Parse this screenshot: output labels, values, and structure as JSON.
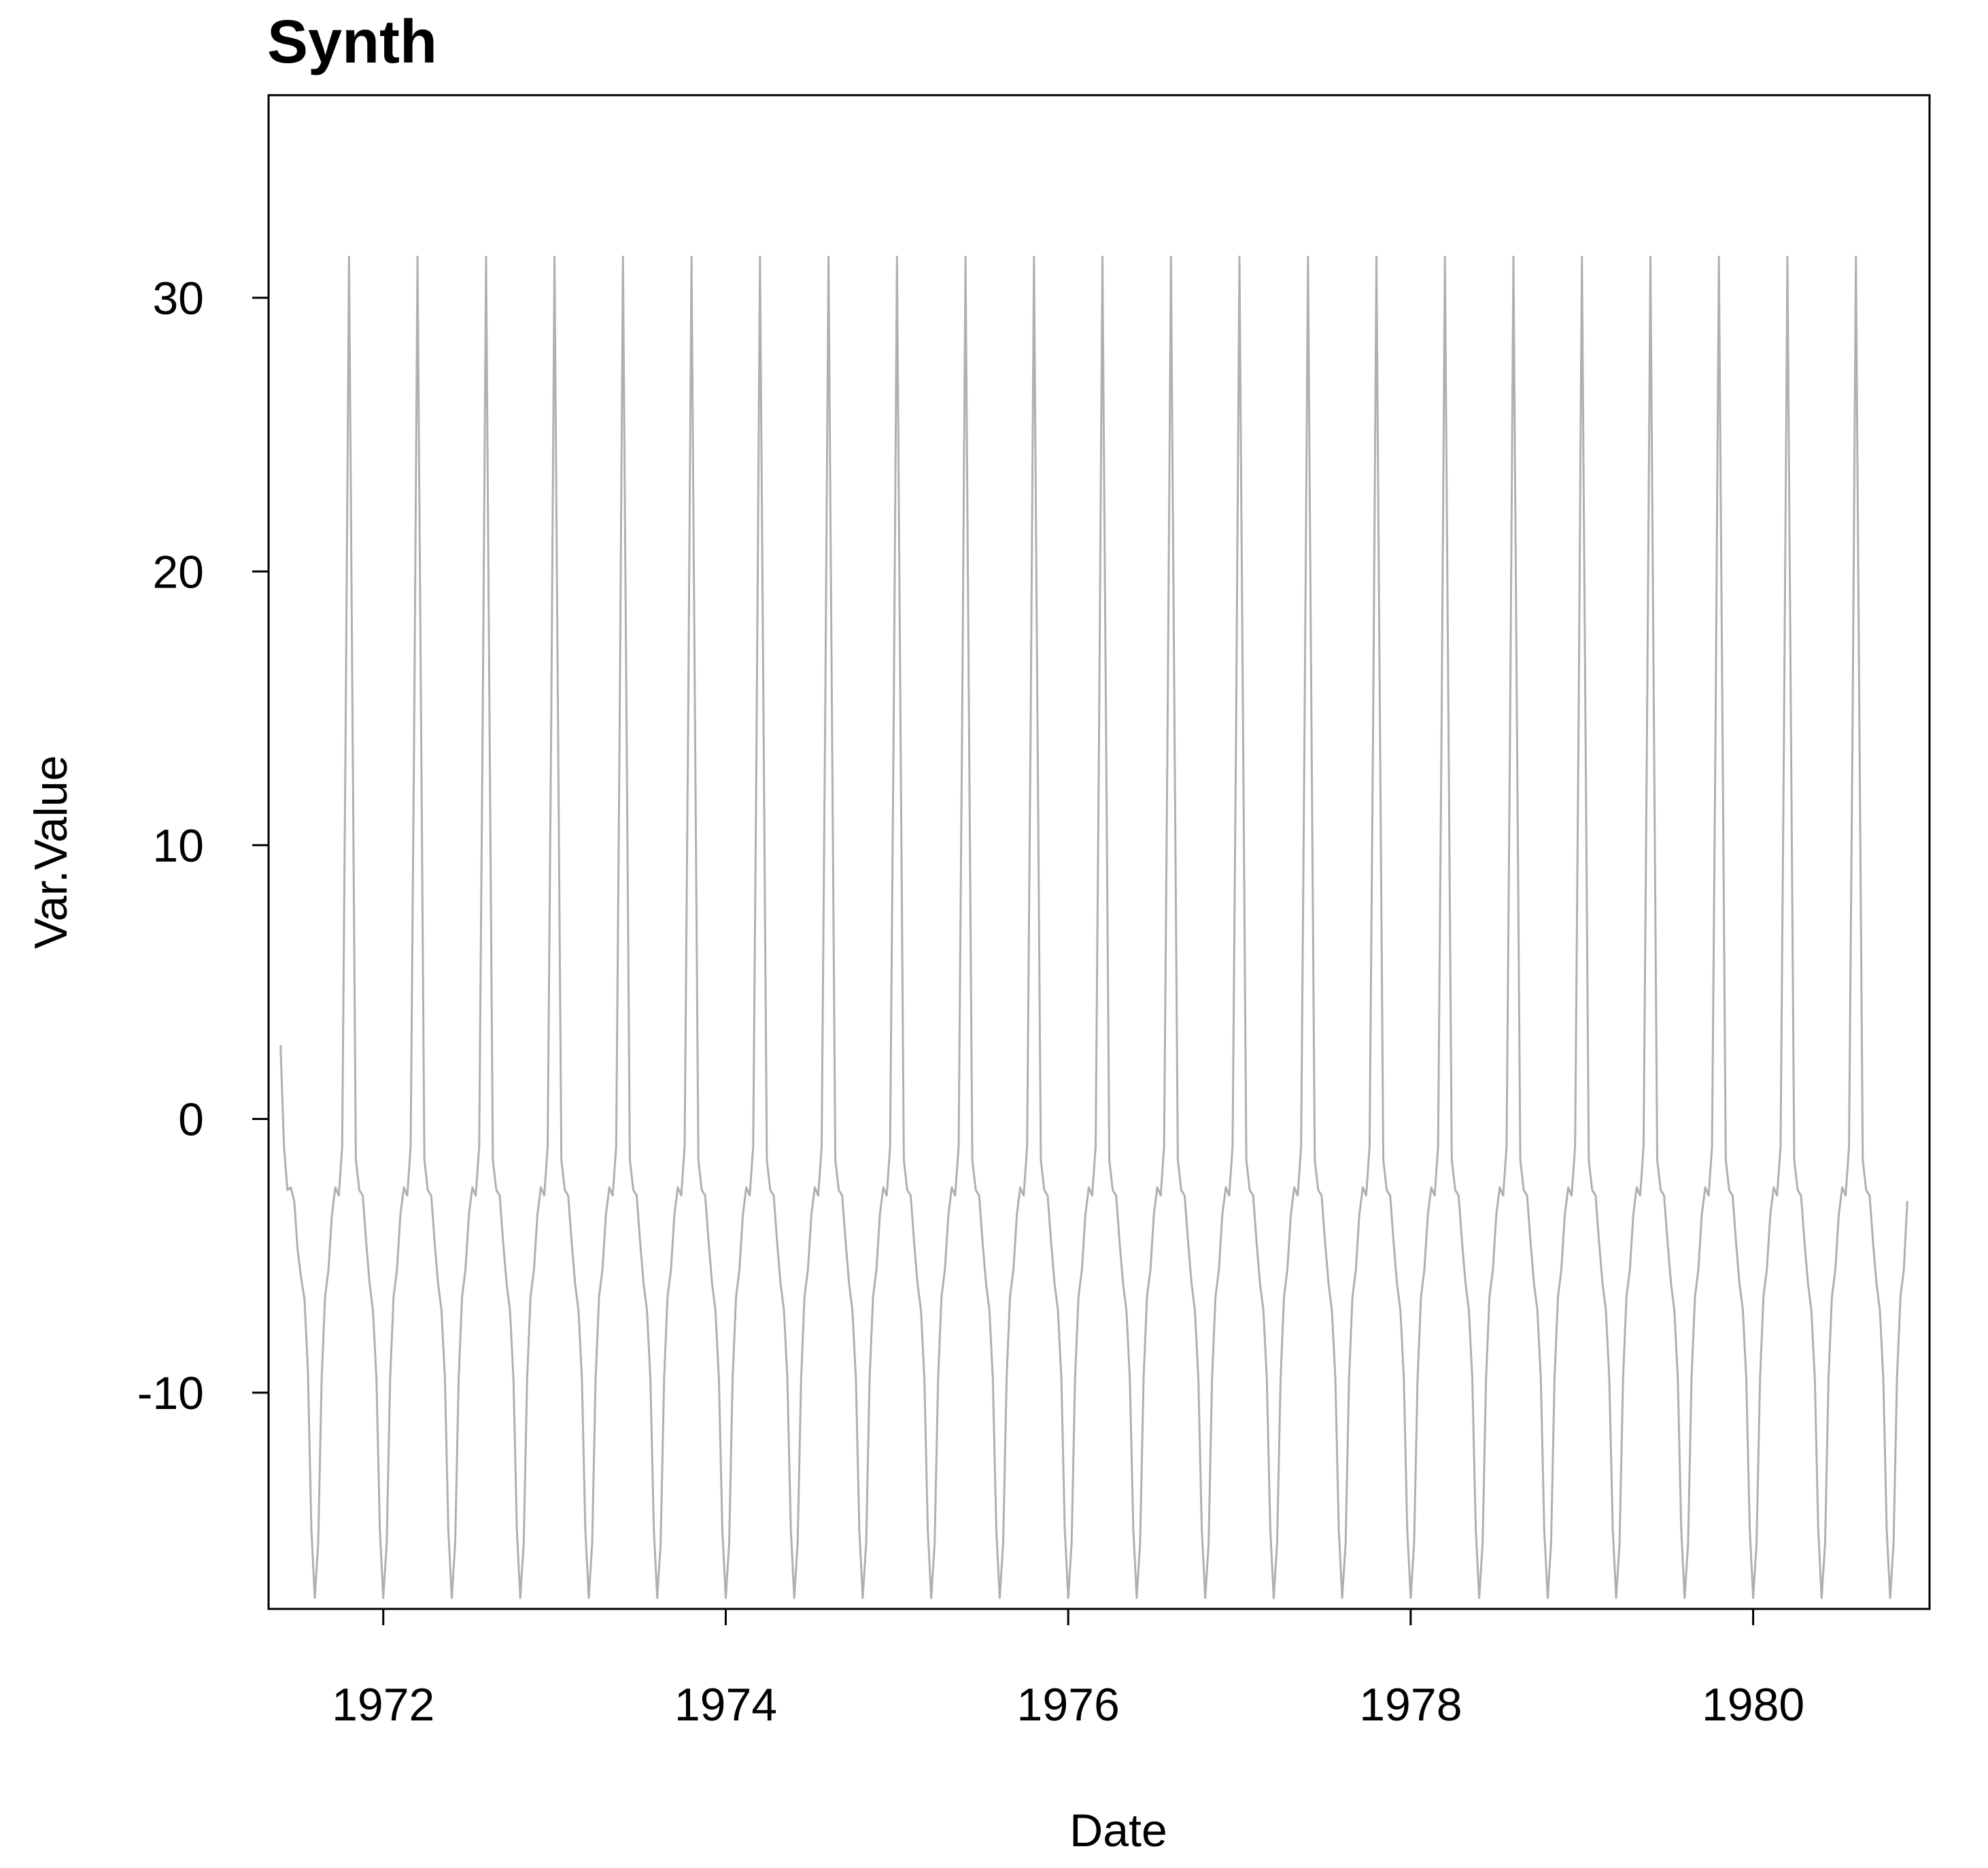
{
  "chart_data": {
    "type": "line",
    "title": "Synth",
    "xlabel": "Date",
    "ylabel": "Var.Value",
    "xlim": [
      1971.33,
      1981.03
    ],
    "ylim": [
      -17.9,
      37.4
    ],
    "x_ticks": [
      1972,
      1974,
      1976,
      1978,
      1980
    ],
    "x_tick_labels": [
      "1972",
      "1974",
      "1976",
      "1978",
      "1980"
    ],
    "y_ticks": [
      -10,
      0,
      10,
      20,
      30
    ],
    "y_tick_labels": [
      "-10",
      "0",
      "10",
      "20",
      "30"
    ],
    "grid": false,
    "legend": "none",
    "line_color": "#b0b0b0",
    "series": [
      {
        "x_start": 1971.4,
        "x_end": 1981.0,
        "x_step": 0.02,
        "values": [
          2.7,
          -1.0,
          -2.6,
          -2.5,
          -3.0,
          -4.8,
          -5.8,
          -6.6,
          -9.2,
          -15.0,
          -17.5,
          -15.5,
          -9.5,
          -6.5,
          -5.5,
          -3.5,
          -2.5,
          -2.8,
          -1.0,
          14.0,
          31.5,
          15.0,
          -1.5,
          -2.6,
          -2.8,
          -4.5,
          -6.0,
          -7.0,
          -9.5,
          -15.0,
          -17.5,
          -15.5,
          -9.5,
          -6.5,
          -5.5,
          -3.5,
          -2.5,
          -2.8,
          -1.0,
          14.0,
          31.5,
          15.0,
          -1.5,
          -2.6,
          -2.8,
          -4.5,
          -6.0,
          -7.0,
          -9.5,
          -15.0,
          -17.5,
          -15.5,
          -9.5,
          -6.5,
          -5.5,
          -3.5,
          -2.5,
          -2.8,
          -1.0,
          14.0,
          31.5,
          15.0,
          -1.5,
          -2.6,
          -2.8,
          -4.5,
          -6.0,
          -7.0,
          -9.5,
          -15.0,
          -17.5,
          -15.5,
          -9.5,
          -6.5,
          -5.5,
          -3.5,
          -2.5,
          -2.8,
          -1.0,
          14.0,
          31.5,
          15.0,
          -1.5,
          -2.6,
          -2.8,
          -4.5,
          -6.0,
          -7.0,
          -9.5,
          -15.0,
          -17.5,
          -15.5,
          -9.5,
          -6.5,
          -5.5,
          -3.5,
          -2.5,
          -2.8,
          -1.0,
          14.0,
          31.5,
          15.0,
          -1.5,
          -2.6,
          -2.8,
          -4.5,
          -6.0,
          -7.0,
          -9.5,
          -15.0,
          -17.5,
          -15.5,
          -9.5,
          -6.5,
          -5.5,
          -3.5,
          -2.5,
          -2.8,
          -1.0,
          14.0,
          31.5,
          15.0,
          -1.5,
          -2.6,
          -2.8,
          -4.5,
          -6.0,
          -7.0,
          -9.5,
          -15.0,
          -17.5,
          -15.5,
          -9.5,
          -6.5,
          -5.5,
          -3.5,
          -2.5,
          -2.8,
          -1.0,
          14.0,
          31.5,
          15.0,
          -1.5,
          -2.6,
          -2.8,
          -4.5,
          -6.0,
          -7.0,
          -9.5,
          -15.0,
          -17.5,
          -15.5,
          -9.5,
          -6.5,
          -5.5,
          -3.5,
          -2.5,
          -2.8,
          -1.0,
          14.0,
          31.5,
          15.0,
          -1.5,
          -2.6,
          -2.8,
          -4.5,
          -6.0,
          -7.0,
          -9.5,
          -15.0,
          -17.5,
          -15.5,
          -9.5,
          -6.5,
          -5.5,
          -3.5,
          -2.5,
          -2.8,
          -1.0,
          14.0,
          31.5,
          15.0,
          -1.5,
          -2.6,
          -2.8,
          -4.5,
          -6.0,
          -7.0,
          -9.5,
          -15.0,
          -17.5,
          -15.5,
          -9.5,
          -6.5,
          -5.5,
          -3.5,
          -2.5,
          -2.8,
          -1.0,
          14.0,
          31.5,
          15.0,
          -1.5,
          -2.6,
          -2.8,
          -4.5,
          -6.0,
          -7.0,
          -9.5,
          -15.0,
          -17.5,
          -15.5,
          -9.5,
          -6.5,
          -5.5,
          -3.5,
          -2.5,
          -2.8,
          -1.0,
          14.0,
          31.5,
          15.0,
          -1.5,
          -2.6,
          -2.8,
          -4.5,
          -6.0,
          -7.0,
          -9.5,
          -15.0,
          -17.5,
          -15.5,
          -9.5,
          -6.5,
          -5.5,
          -3.5,
          -2.5,
          -2.8,
          -1.0,
          14.0,
          31.5,
          15.0,
          -1.5,
          -2.6,
          -2.8,
          -4.5,
          -6.0,
          -7.0,
          -9.5,
          -15.0,
          -17.5,
          -15.5,
          -9.5,
          -6.5,
          -5.5,
          -3.5,
          -2.5,
          -2.8,
          -1.0,
          14.0,
          31.5,
          15.0,
          -1.5,
          -2.6,
          -2.8,
          -4.5,
          -6.0,
          -7.0,
          -9.5,
          -15.0,
          -17.5,
          -15.5,
          -9.5,
          -6.5,
          -5.5,
          -3.5,
          -2.5,
          -2.8,
          -1.0,
          14.0,
          31.5,
          15.0,
          -1.5,
          -2.6,
          -2.8,
          -4.5,
          -6.0,
          -7.0,
          -9.5,
          -15.0,
          -17.5,
          -15.5,
          -9.5,
          -6.5,
          -5.5,
          -3.5,
          -2.5,
          -2.8,
          -1.0,
          14.0,
          31.5,
          15.0,
          -1.5,
          -2.6,
          -2.8,
          -4.5,
          -6.0,
          -7.0,
          -9.5,
          -15.0,
          -17.5,
          -15.5,
          -9.5,
          -6.5,
          -5.5,
          -3.5,
          -2.5,
          -2.8,
          -1.0,
          14.0,
          31.5,
          15.0,
          -1.5,
          -2.6,
          -2.8,
          -4.5,
          -6.0,
          -7.0,
          -9.5,
          -15.0,
          -17.5,
          -15.5,
          -9.5,
          -6.5,
          -5.5,
          -3.5,
          -2.5,
          -2.8,
          -1.0,
          14.0,
          31.5,
          15.0,
          -1.5,
          -2.6,
          -2.8,
          -4.5,
          -6.0,
          -7.0,
          -9.5,
          -15.0,
          -17.5,
          -15.5,
          -9.5,
          -6.5,
          -5.5,
          -3.5,
          -2.5,
          -2.8,
          -1.0,
          14.0,
          31.5,
          15.0,
          -1.5,
          -2.6,
          -2.8,
          -4.5,
          -6.0,
          -7.0,
          -9.5,
          -15.0,
          -17.5,
          -15.5,
          -9.5,
          -6.5,
          -5.5,
          -3.5,
          -2.5,
          -2.8,
          -1.0,
          14.0,
          31.5,
          15.0,
          -1.5,
          -2.6,
          -2.8,
          -4.5,
          -6.0,
          -7.0,
          -9.5,
          -15.0,
          -17.5,
          -15.5,
          -9.5,
          -6.5,
          -5.5,
          -3.5,
          -2.5,
          -2.8,
          -1.0,
          14.0,
          31.5,
          15.0,
          -1.5,
          -2.6,
          -2.8,
          -4.5,
          -6.0,
          -7.0,
          -9.5,
          -15.0,
          -17.5,
          -15.5,
          -9.5,
          -6.5,
          -5.5,
          -3.5,
          -2.5,
          -2.8,
          -1.0,
          14.0,
          31.5,
          15.0,
          -1.5,
          -2.6,
          -2.8,
          -4.5,
          -6.0,
          -7.0,
          -9.5,
          -15.0,
          -17.5,
          -15.5,
          -9.5,
          -6.5,
          -5.5,
          -3.5,
          -2.5,
          -2.8,
          -1.0,
          14.0,
          31.5,
          15.0,
          -1.5,
          -2.6,
          -2.8,
          -4.5,
          -6.0,
          -7.0,
          -9.5,
          -15.0,
          -17.5,
          -15.5,
          -9.5,
          -6.5,
          -5.5,
          -3.5,
          -2.5,
          -2.8,
          -1.0,
          14.0,
          31.5,
          15.0,
          -1.5,
          -2.6,
          -2.8,
          -4.5,
          -6.0,
          -7.0,
          -9.5,
          -15.0,
          -17.5,
          -15.5,
          -9.5,
          -6.5,
          -5.5,
          -3.0
        ]
      }
    ]
  }
}
